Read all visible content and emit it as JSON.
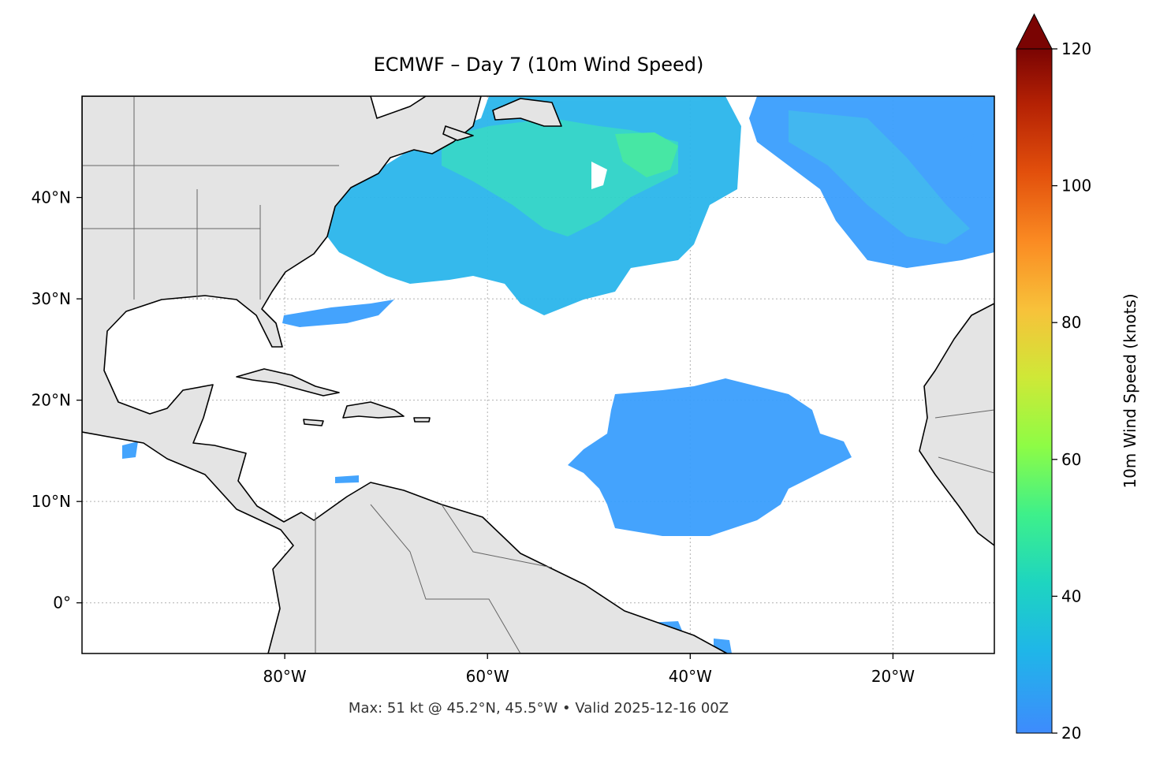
{
  "map": {
    "title": "ECMWF – Day 7 (10m Wind Speed)",
    "footer": "Max: 51 kt @ 45.2°N, 45.5°W • Valid 2025-12-16 00Z",
    "xlim": [
      -100,
      -10
    ],
    "ylim": [
      -5,
      50
    ],
    "xticks": [
      {
        "value": -80,
        "label": "80°W"
      },
      {
        "value": -60,
        "label": "60°W"
      },
      {
        "value": -40,
        "label": "40°W"
      },
      {
        "value": -20,
        "label": "20°W"
      }
    ],
    "yticks": [
      {
        "value": 0,
        "label": "0°"
      },
      {
        "value": 10,
        "label": "10°N"
      },
      {
        "value": 20,
        "label": "20°N"
      },
      {
        "value": 30,
        "label": "30°N"
      },
      {
        "value": 40,
        "label": "40°N"
      }
    ],
    "colorbar": {
      "label": "10m Wind Speed (knots)",
      "lim": [
        20,
        120
      ],
      "ticks": [
        20,
        40,
        60,
        80,
        100,
        120
      ]
    }
  }
}
